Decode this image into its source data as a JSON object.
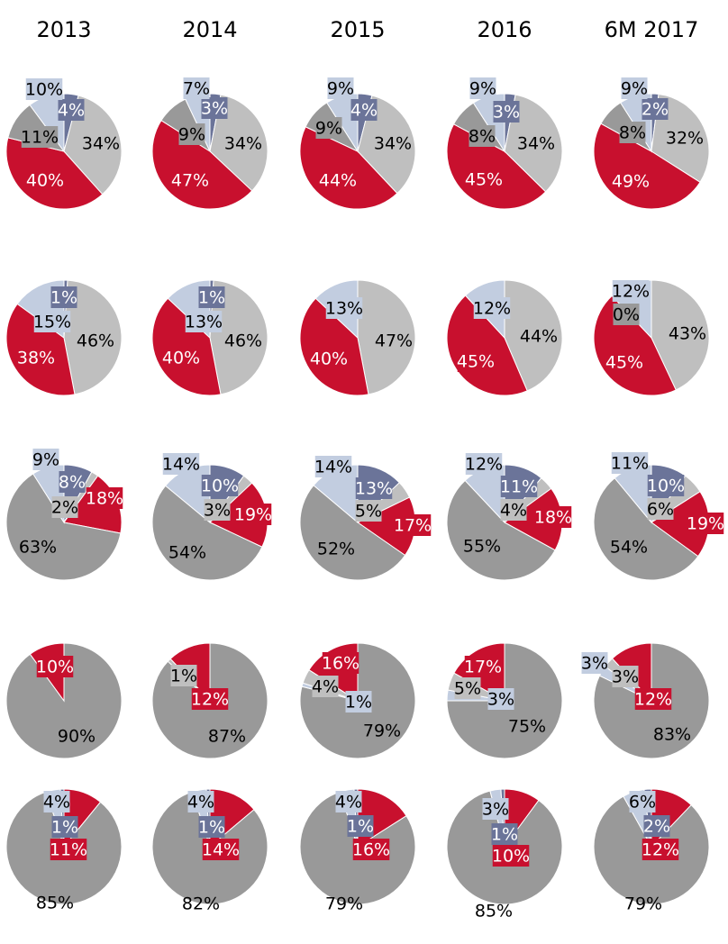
{
  "palette": {
    "red": "#c8102e",
    "light_gray": "#bfbfbf",
    "dark_gray": "#999999",
    "slate": "#6b7499",
    "pale_blue": "#c2cde0",
    "text_dark": "#000000",
    "text_light": "#ffffff"
  },
  "chart_data": {
    "type": "pie",
    "columns": [
      "2013",
      "2014",
      "2015",
      "2016",
      "6M 2017"
    ],
    "rows": [
      {
        "pies": [
          {
            "slices": [
              {
                "value": 4,
                "label": "4%",
                "color": "slate"
              },
              {
                "value": 34,
                "label": "34%",
                "color": "light_gray"
              },
              {
                "value": 40,
                "label": "40%",
                "color": "red"
              },
              {
                "value": 11,
                "label": "11%",
                "color": "dark_gray"
              },
              {
                "value": 10,
                "label": "10%",
                "color": "pale_blue"
              }
            ]
          },
          {
            "slices": [
              {
                "value": 3,
                "label": "3%",
                "color": "slate"
              },
              {
                "value": 34,
                "label": "34%",
                "color": "light_gray"
              },
              {
                "value": 47,
                "label": "47%",
                "color": "red"
              },
              {
                "value": 9,
                "label": "9%",
                "color": "dark_gray"
              },
              {
                "value": 7,
                "label": "7%",
                "color": "pale_blue"
              }
            ]
          },
          {
            "slices": [
              {
                "value": 4,
                "label": "4%",
                "color": "slate"
              },
              {
                "value": 34,
                "label": "34%",
                "color": "light_gray"
              },
              {
                "value": 44,
                "label": "44%",
                "color": "red"
              },
              {
                "value": 9,
                "label": "9%",
                "color": "dark_gray"
              },
              {
                "value": 9,
                "label": "9%",
                "color": "pale_blue"
              }
            ]
          },
          {
            "slices": [
              {
                "value": 3,
                "label": "3%",
                "color": "slate"
              },
              {
                "value": 34,
                "label": "34%",
                "color": "light_gray"
              },
              {
                "value": 45,
                "label": "45%",
                "color": "red"
              },
              {
                "value": 8,
                "label": "8%",
                "color": "dark_gray"
              },
              {
                "value": 9,
                "label": "9%",
                "color": "pale_blue"
              }
            ]
          },
          {
            "slices": [
              {
                "value": 2,
                "label": "2%",
                "color": "slate"
              },
              {
                "value": 32,
                "label": "32%",
                "color": "light_gray"
              },
              {
                "value": 49,
                "label": "49%",
                "color": "red"
              },
              {
                "value": 8,
                "label": "8%",
                "color": "dark_gray"
              },
              {
                "value": 9,
                "label": "9%",
                "color": "pale_blue"
              }
            ]
          }
        ]
      },
      {
        "pies": [
          {
            "slices": [
              {
                "value": 1,
                "label": "1%",
                "color": "slate"
              },
              {
                "value": 46,
                "label": "46%",
                "color": "light_gray"
              },
              {
                "value": 38,
                "label": "38%",
                "color": "red"
              },
              {
                "value": 15,
                "label": "15%",
                "color": "pale_blue"
              }
            ]
          },
          {
            "slices": [
              {
                "value": 1,
                "label": "1%",
                "color": "slate"
              },
              {
                "value": 46,
                "label": "46%",
                "color": "light_gray"
              },
              {
                "value": 40,
                "label": "40%",
                "color": "red"
              },
              {
                "value": 13,
                "label": "13%",
                "color": "pale_blue"
              }
            ]
          },
          {
            "slices": [
              {
                "value": 47,
                "label": "47%",
                "color": "light_gray"
              },
              {
                "value": 40,
                "label": "40%",
                "color": "red"
              },
              {
                "value": 13,
                "label": "13%",
                "color": "pale_blue"
              }
            ]
          },
          {
            "slices": [
              {
                "value": 44,
                "label": "44%",
                "color": "light_gray"
              },
              {
                "value": 45,
                "label": "45%",
                "color": "red"
              },
              {
                "value": 12,
                "label": "12%",
                "color": "pale_blue"
              }
            ]
          },
          {
            "slices": [
              {
                "value": 0,
                "label": "0%",
                "color": "dark_gray"
              },
              {
                "value": 43,
                "label": "43%",
                "color": "light_gray"
              },
              {
                "value": 45,
                "label": "45%",
                "color": "red"
              },
              {
                "value": 12,
                "label": "12%",
                "color": "pale_blue"
              }
            ]
          }
        ]
      },
      {
        "pies": [
          {
            "slices": [
              {
                "value": 8,
                "label": "8%",
                "color": "slate"
              },
              {
                "value": 2,
                "label": "2%",
                "color": "light_gray"
              },
              {
                "value": 18,
                "label": "18%",
                "color": "red"
              },
              {
                "value": 63,
                "label": "63%",
                "color": "dark_gray"
              },
              {
                "value": 9,
                "label": "9%",
                "color": "pale_blue"
              }
            ]
          },
          {
            "slices": [
              {
                "value": 10,
                "label": "10%",
                "color": "slate"
              },
              {
                "value": 3,
                "label": "3%",
                "color": "light_gray"
              },
              {
                "value": 19,
                "label": "19%",
                "color": "red"
              },
              {
                "value": 54,
                "label": "54%",
                "color": "dark_gray"
              },
              {
                "value": 14,
                "label": "14%",
                "color": "pale_blue"
              }
            ]
          },
          {
            "slices": [
              {
                "value": 13,
                "label": "13%",
                "color": "slate"
              },
              {
                "value": 5,
                "label": "5%",
                "color": "light_gray"
              },
              {
                "value": 17,
                "label": "17%",
                "color": "red"
              },
              {
                "value": 52,
                "label": "52%",
                "color": "dark_gray"
              },
              {
                "value": 14,
                "label": "14%",
                "color": "pale_blue"
              }
            ]
          },
          {
            "slices": [
              {
                "value": 11,
                "label": "11%",
                "color": "slate"
              },
              {
                "value": 4,
                "label": "4%",
                "color": "light_gray"
              },
              {
                "value": 18,
                "label": "18%",
                "color": "red"
              },
              {
                "value": 55,
                "label": "55%",
                "color": "dark_gray"
              },
              {
                "value": 12,
                "label": "12%",
                "color": "pale_blue"
              }
            ]
          },
          {
            "slices": [
              {
                "value": 10,
                "label": "10%",
                "color": "slate"
              },
              {
                "value": 6,
                "label": "6%",
                "color": "light_gray"
              },
              {
                "value": 19,
                "label": "19%",
                "color": "red"
              },
              {
                "value": 54,
                "label": "54%",
                "color": "dark_gray"
              },
              {
                "value": 11,
                "label": "11%",
                "color": "pale_blue"
              }
            ]
          }
        ]
      },
      {
        "pies": [
          {
            "slices": [
              {
                "value": 90,
                "label": "90%",
                "color": "dark_gray"
              },
              {
                "value": 10,
                "label": "10%",
                "color": "red"
              }
            ]
          },
          {
            "slices": [
              {
                "value": 87,
                "label": "87%",
                "color": "dark_gray"
              },
              {
                "value": 1,
                "label": "1%",
                "color": "light_gray"
              },
              {
                "value": 12,
                "label": "12%",
                "color": "red"
              }
            ]
          },
          {
            "slices": [
              {
                "value": 79,
                "label": "79%",
                "color": "dark_gray"
              },
              {
                "value": 1,
                "label": "1%",
                "color": "pale_blue"
              },
              {
                "value": 4,
                "label": "4%",
                "color": "light_gray"
              },
              {
                "value": 16,
                "label": "16%",
                "color": "red"
              }
            ]
          },
          {
            "slices": [
              {
                "value": 75,
                "label": "75%",
                "color": "dark_gray"
              },
              {
                "value": 3,
                "label": "3%",
                "color": "pale_blue"
              },
              {
                "value": 5,
                "label": "5%",
                "color": "light_gray"
              },
              {
                "value": 17,
                "label": "17%",
                "color": "red"
              }
            ]
          },
          {
            "slices": [
              {
                "value": 83,
                "label": "83%",
                "color": "dark_gray"
              },
              {
                "value": 3,
                "label": "3%",
                "color": "pale_blue"
              },
              {
                "value": 3,
                "label": "3%",
                "color": "light_gray"
              },
              {
                "value": 12,
                "label": "12%",
                "color": "red"
              }
            ]
          }
        ]
      },
      {
        "pies": [
          {
            "slices": [
              {
                "value": 11,
                "label": "11%",
                "color": "red"
              },
              {
                "value": 85,
                "label": "85%",
                "color": "dark_gray"
              },
              {
                "value": 4,
                "label": "4%",
                "color": "pale_blue"
              },
              {
                "value": 1,
                "label": "1%",
                "color": "slate"
              }
            ]
          },
          {
            "slices": [
              {
                "value": 14,
                "label": "14%",
                "color": "red"
              },
              {
                "value": 82,
                "label": "82%",
                "color": "dark_gray"
              },
              {
                "value": 4,
                "label": "4%",
                "color": "pale_blue"
              },
              {
                "value": 1,
                "label": "1%",
                "color": "slate"
              }
            ]
          },
          {
            "slices": [
              {
                "value": 16,
                "label": "16%",
                "color": "red"
              },
              {
                "value": 79,
                "label": "79%",
                "color": "dark_gray"
              },
              {
                "value": 4,
                "label": "4%",
                "color": "pale_blue"
              },
              {
                "value": 1,
                "label": "1%",
                "color": "slate"
              }
            ]
          },
          {
            "slices": [
              {
                "value": 10,
                "label": "10%",
                "color": "red"
              },
              {
                "value": 85,
                "label": "85%",
                "color": "dark_gray"
              },
              {
                "value": 3,
                "label": "3%",
                "color": "pale_blue"
              },
              {
                "value": 1,
                "label": "1%",
                "color": "slate"
              }
            ]
          },
          {
            "slices": [
              {
                "value": 12,
                "label": "12%",
                "color": "red"
              },
              {
                "value": 79,
                "label": "79%",
                "color": "dark_gray"
              },
              {
                "value": 6,
                "label": "6%",
                "color": "pale_blue"
              },
              {
                "value": 2,
                "label": "2%",
                "color": "slate"
              }
            ]
          }
        ]
      }
    ]
  }
}
